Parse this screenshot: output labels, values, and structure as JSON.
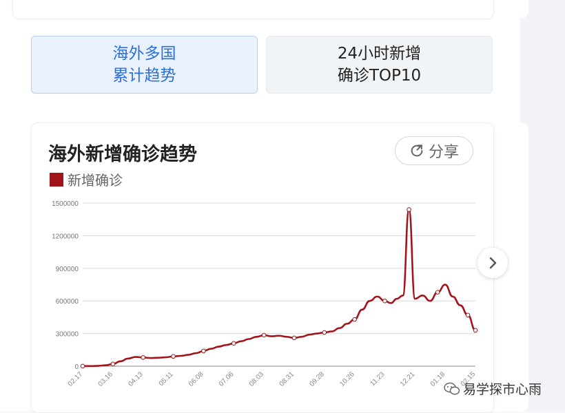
{
  "tabs": [
    {
      "line1": "海外多国",
      "line2": "累计趋势",
      "active": true
    },
    {
      "line1": "24小时新增",
      "line2": "确诊TOP10",
      "active": false
    }
  ],
  "chart_card": {
    "title": "海外新增确诊趋势",
    "share_label": "分享",
    "share_icon": "share-icon",
    "next_icon": "chevron-right-icon"
  },
  "watermark": "易学探市心雨",
  "colors": {
    "series": "#a0141a",
    "accent": "#2b6fdb"
  },
  "chart_data": {
    "type": "line",
    "title": "海外新增确诊趋势",
    "xlabel": "",
    "ylabel": "",
    "ylim": [
      0,
      1500000
    ],
    "yticks": [
      "1500000",
      "1200000",
      "900000",
      "600000",
      "300000",
      "0"
    ],
    "xticks": [
      "02.17",
      "03.16",
      "04.13",
      "05.11",
      "06.08",
      "07.06",
      "08.03",
      "08.31",
      "09.28",
      "10.26",
      "11.23",
      "12.21",
      "01.18",
      "02.15"
    ],
    "grid": true,
    "legend": "top-left",
    "series": [
      {
        "name": "新增确诊",
        "x": [
          "02.17",
          "02.24",
          "03.02",
          "03.09",
          "03.16",
          "03.23",
          "03.30",
          "04.06",
          "04.13",
          "04.20",
          "04.27",
          "05.04",
          "05.11",
          "05.18",
          "05.25",
          "06.01",
          "06.08",
          "06.15",
          "06.22",
          "06.29",
          "07.06",
          "07.13",
          "07.20",
          "07.27",
          "08.03",
          "08.10",
          "08.17",
          "08.24",
          "08.31",
          "09.07",
          "09.14",
          "09.21",
          "09.28",
          "10.05",
          "10.12",
          "10.19",
          "10.26",
          "11.02",
          "11.09",
          "11.16",
          "11.23",
          "11.30",
          "12.07",
          "12.14",
          "12.18",
          "12.21",
          "12.28",
          "01.04",
          "01.11",
          "01.18",
          "01.25",
          "02.01",
          "02.08",
          "02.15"
        ],
        "values": [
          1000,
          1500,
          3000,
          8000,
          20000,
          45000,
          70000,
          85000,
          80000,
          75000,
          78000,
          82000,
          90000,
          95000,
          105000,
          120000,
          140000,
          160000,
          180000,
          195000,
          210000,
          230000,
          250000,
          270000,
          285000,
          275000,
          280000,
          270000,
          260000,
          270000,
          290000,
          300000,
          310000,
          320000,
          350000,
          390000,
          430000,
          520000,
          600000,
          640000,
          600000,
          580000,
          620000,
          650000,
          1440000,
          620000,
          650000,
          600000,
          680000,
          750000,
          640000,
          560000,
          470000,
          330000
        ]
      }
    ]
  }
}
